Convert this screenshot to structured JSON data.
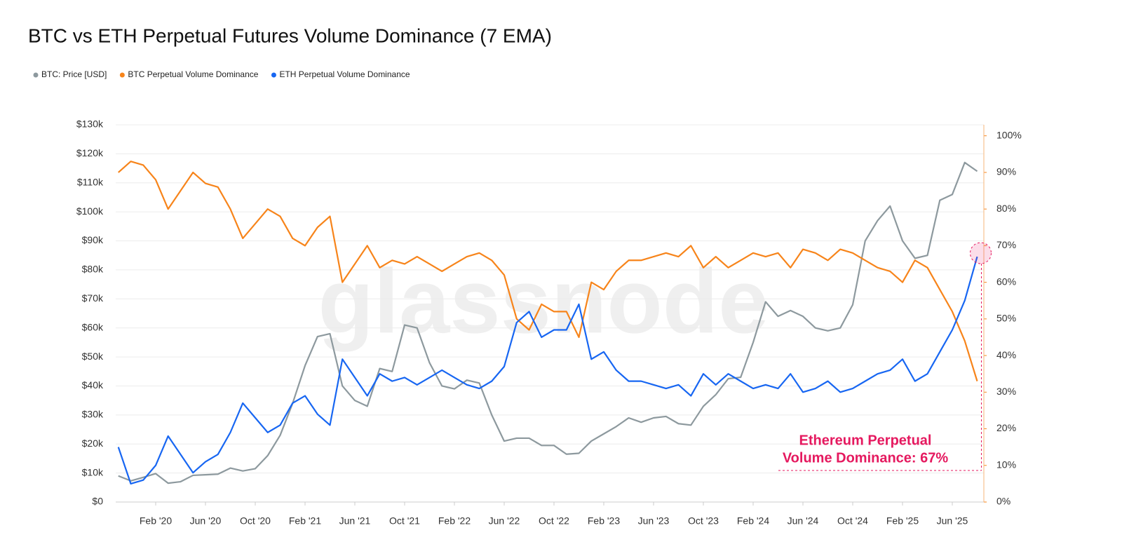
{
  "chart_data": {
    "type": "line",
    "title": "BTC vs ETH Perpetual Futures Volume Dominance (7 EMA)",
    "watermark": "glassnode",
    "annotation": [
      "Ethereum Perpetual",
      "Volume Dominance: 67%"
    ],
    "categories": [
      null,
      null,
      null,
      "Feb '20",
      null,
      null,
      null,
      "Jun '20",
      null,
      null,
      null,
      "Oct '20",
      null,
      null,
      null,
      "Feb '21",
      null,
      null,
      null,
      "Jun '21",
      null,
      null,
      null,
      "Oct '21",
      null,
      null,
      null,
      "Feb '22",
      null,
      null,
      null,
      "Jun '22",
      null,
      null,
      null,
      "Oct '22",
      null,
      null,
      null,
      "Feb '23",
      null,
      null,
      null,
      "Jun '23",
      null,
      null,
      null,
      "Oct '23",
      null,
      null,
      null,
      "Feb '24",
      null,
      null,
      null,
      "Jun '24",
      null,
      null,
      null,
      "Oct '24",
      null,
      null,
      null,
      "Feb '25",
      null,
      null,
      null,
      "Jun '25",
      null,
      null
    ],
    "series": [
      {
        "name": "BTC: Price [USD]",
        "color": "#8d999e",
        "axis": "y",
        "values": [
          9000,
          7300,
          8500,
          9800,
          6500,
          7000,
          9200,
          9400,
          9600,
          11700,
          10700,
          11500,
          16000,
          23000,
          34000,
          47000,
          57000,
          58000,
          40000,
          35000,
          33000,
          46000,
          45000,
          61000,
          60000,
          48000,
          40000,
          39000,
          42000,
          41000,
          30000,
          21000,
          22000,
          22000,
          19500,
          19500,
          16500,
          16800,
          21000,
          23500,
          26000,
          29000,
          27500,
          29000,
          29500,
          27000,
          26500,
          33000,
          37000,
          42500,
          43000,
          55000,
          69000,
          64000,
          66000,
          64000,
          60000,
          59000,
          60000,
          68000,
          90000,
          97000,
          102000,
          90000,
          84000,
          85000,
          104000,
          106000,
          117000,
          114000
        ]
      },
      {
        "name": "BTC Perpetual Volume Dominance",
        "color": "#f7841a",
        "axis": "y2",
        "values": [
          90,
          93,
          92,
          88,
          80,
          85,
          90,
          87,
          86,
          80,
          72,
          76,
          80,
          78,
          72,
          70,
          75,
          78,
          60,
          65,
          70,
          64,
          66,
          65,
          67,
          65,
          63,
          65,
          67,
          68,
          66,
          62,
          50,
          47,
          54,
          52,
          52,
          45,
          60,
          58,
          63,
          66,
          66,
          67,
          68,
          67,
          70,
          64,
          67,
          64,
          66,
          68,
          67,
          68,
          64,
          69,
          68,
          66,
          69,
          68,
          66,
          64,
          63,
          60,
          66,
          64,
          58,
          52,
          44,
          33
        ]
      },
      {
        "name": "ETH Perpetual Volume Dominance",
        "color": "#1766f2",
        "axis": "y2",
        "values": [
          15,
          5,
          6,
          10,
          18,
          13,
          8,
          11,
          13,
          19,
          27,
          23,
          19,
          21,
          27,
          29,
          24,
          21,
          39,
          34,
          29,
          35,
          33,
          34,
          32,
          34,
          36,
          34,
          32,
          31,
          33,
          37,
          49,
          52,
          45,
          47,
          47,
          54,
          39,
          41,
          36,
          33,
          33,
          32,
          31,
          32,
          29,
          35,
          32,
          35,
          33,
          31,
          32,
          31,
          35,
          30,
          31,
          33,
          30,
          31,
          33,
          35,
          36,
          39,
          33,
          35,
          41,
          47,
          55,
          67
        ]
      }
    ],
    "ylim": [
      0,
      130000
    ],
    "yticks": [
      {
        "value": 0,
        "label": "$0"
      },
      {
        "value": 10000,
        "label": "$10k"
      },
      {
        "value": 20000,
        "label": "$20k"
      },
      {
        "value": 30000,
        "label": "$30k"
      },
      {
        "value": 40000,
        "label": "$40k"
      },
      {
        "value": 50000,
        "label": "$50k"
      },
      {
        "value": 60000,
        "label": "$60k"
      },
      {
        "value": 70000,
        "label": "$70k"
      },
      {
        "value": 80000,
        "label": "$80k"
      },
      {
        "value": 90000,
        "label": "$90k"
      },
      {
        "value": 100000,
        "label": "$100k"
      },
      {
        "value": 110000,
        "label": "$110k"
      },
      {
        "value": 120000,
        "label": "$120k"
      },
      {
        "value": 130000,
        "label": "$130k"
      }
    ],
    "y2lim": [
      0,
      103
    ],
    "y2ticks": [
      {
        "value": 0,
        "label": "0%"
      },
      {
        "value": 10,
        "label": "10%"
      },
      {
        "value": 20,
        "label": "20%"
      },
      {
        "value": 30,
        "label": "30%"
      },
      {
        "value": 40,
        "label": "40%"
      },
      {
        "value": 50,
        "label": "50%"
      },
      {
        "value": 60,
        "label": "60%"
      },
      {
        "value": 70,
        "label": "70%"
      },
      {
        "value": 80,
        "label": "80%"
      },
      {
        "value": 90,
        "label": "90%"
      },
      {
        "value": 100,
        "label": "100%"
      }
    ],
    "grid": true
  }
}
